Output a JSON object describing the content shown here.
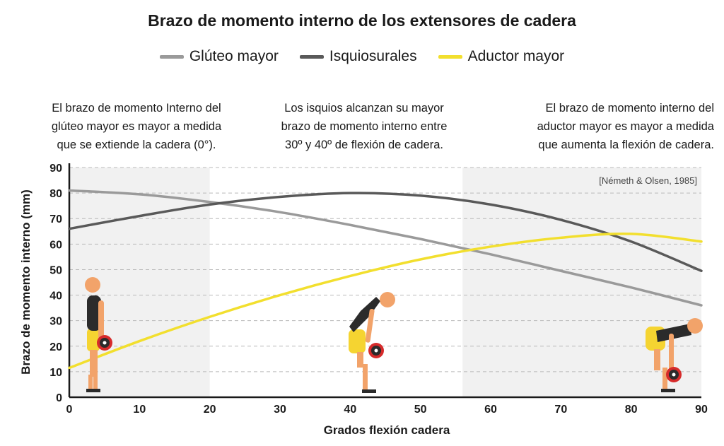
{
  "chart_data": {
    "type": "line",
    "title": "Brazo de momento interno de los extensores de cadera",
    "xlabel": "Grados flexión cadera",
    "ylabel": "Brazo de momento interno (mm)",
    "xlim": [
      0,
      90
    ],
    "ylim": [
      0,
      90
    ],
    "x_ticks": [
      0,
      10,
      20,
      30,
      40,
      50,
      60,
      70,
      80,
      90
    ],
    "y_ticks": [
      0,
      10,
      20,
      30,
      40,
      50,
      60,
      70,
      80,
      90
    ],
    "grid": "horizontal-dashed",
    "legend_position": "top",
    "shaded_regions": [
      [
        0,
        20
      ],
      [
        56,
        90
      ]
    ],
    "series": [
      {
        "name": "Glúteo mayor",
        "color": "#9a9a9a",
        "x": [
          0,
          10,
          20,
          30,
          40,
          50,
          60,
          70,
          80,
          90
        ],
        "y": [
          81,
          79.5,
          76.5,
          72.5,
          67.5,
          62,
          56,
          49.5,
          43,
          36
        ]
      },
      {
        "name": "Isquiosurales",
        "color": "#595959",
        "x": [
          0,
          10,
          20,
          30,
          40,
          50,
          60,
          70,
          80,
          90
        ],
        "y": [
          66,
          71,
          75.5,
          78.5,
          80,
          79,
          75.5,
          69.5,
          61,
          49.5
        ]
      },
      {
        "name": "Aductor mayor",
        "color": "#f2df2e",
        "x": [
          0,
          10,
          20,
          30,
          40,
          50,
          60,
          70,
          80,
          90
        ],
        "y": [
          11.5,
          22,
          31.5,
          40,
          47.5,
          54,
          59,
          62.5,
          64,
          61
        ]
      }
    ]
  },
  "notes": {
    "left": [
      "El brazo de momento Interno del",
      "glúteo mayor es mayor a medida",
      "que se extiende la cadera (0°)."
    ],
    "center": [
      "Los isquios alcanzan su mayor",
      "brazo de momento interno entre",
      "30º y 40º de flexión de cadera."
    ],
    "right": [
      "El brazo de momento interno del",
      "aductor mayor es mayor a medida",
      "que aumenta la flexión de cadera."
    ]
  },
  "source": "[Németh & Olsen, 1985]",
  "figures": [
    {
      "name": "figure-standing",
      "flexion": 3
    },
    {
      "name": "figure-mid-bend",
      "flexion": 43
    },
    {
      "name": "figure-deep-bend",
      "flexion": 87
    }
  ]
}
